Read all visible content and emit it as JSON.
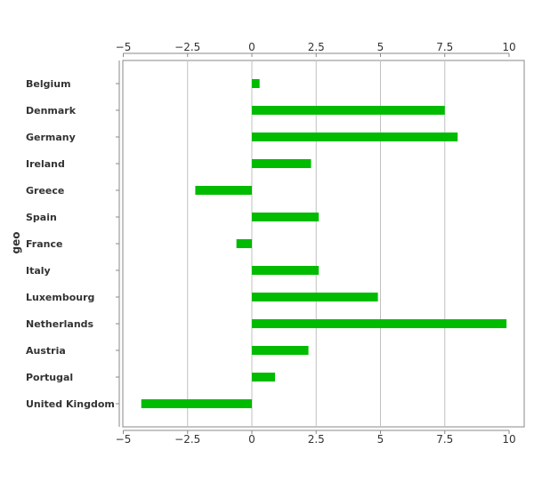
{
  "colors": {
    "bar": "#00bb00",
    "grid": "#c0c0c0",
    "axis": "#888888",
    "frame": "#888888"
  },
  "chart_data": {
    "type": "bar",
    "orientation": "horizontal",
    "title": "",
    "xlabel": "",
    "ylabel": "geo",
    "categories": [
      "Belgium",
      "Denmark",
      "Germany",
      "Ireland",
      "Greece",
      "Spain",
      "France",
      "Italy",
      "Luxembourg",
      "Netherlands",
      "Austria",
      "Portugal",
      "United Kingdom"
    ],
    "values": [
      0.3,
      7.5,
      8.0,
      2.3,
      -2.2,
      2.6,
      -0.6,
      2.6,
      4.9,
      9.9,
      2.2,
      0.9,
      -4.3
    ],
    "xlim": [
      -5,
      10
    ],
    "xticks": [
      -5,
      -2.5,
      0,
      2.5,
      5,
      7.5,
      10
    ],
    "xtick_labels": [
      "−5",
      "−2.5",
      "0",
      "2.5",
      "5",
      "7.5",
      "10"
    ],
    "grid": true,
    "legend": false
  }
}
